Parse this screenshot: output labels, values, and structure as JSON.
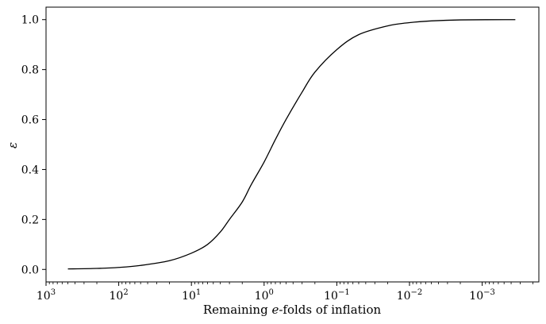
{
  "chart_data": {
    "type": "line",
    "title": "",
    "xlabel": "Remaining e-folds of inflation",
    "ylabel": "ε",
    "x_scale": "log",
    "x_reversed": true,
    "xlim": [
      1000,
      0.0017
    ],
    "ylim": [
      -0.05,
      1.05
    ],
    "grid": false,
    "x_ticks": [
      {
        "value": 1000,
        "base": "10",
        "exp": "3"
      },
      {
        "value": 100,
        "base": "10",
        "exp": "2"
      },
      {
        "value": 10,
        "base": "10",
        "exp": "1"
      },
      {
        "value": 1,
        "base": "10",
        "exp": "0"
      },
      {
        "value": 0.1,
        "base": "10",
        "exp": "−1"
      },
      {
        "value": 0.01,
        "base": "10",
        "exp": "−2"
      },
      {
        "value": 0.001,
        "base": "10",
        "exp": "−3"
      }
    ],
    "y_ticks": [
      {
        "value": 0.0,
        "label": "0.0"
      },
      {
        "value": 0.2,
        "label": "0.2"
      },
      {
        "value": 0.4,
        "label": "0.4"
      },
      {
        "value": 0.6,
        "label": "0.6"
      },
      {
        "value": 0.8,
        "label": "0.8"
      },
      {
        "value": 1.0,
        "label": "1.0"
      }
    ],
    "series": [
      {
        "color": "#000000",
        "points": [
          {
            "x": 500,
            "y": 0.002
          },
          {
            "x": 200,
            "y": 0.004
          },
          {
            "x": 100,
            "y": 0.008
          },
          {
            "x": 50,
            "y": 0.016
          },
          {
            "x": 20,
            "y": 0.035
          },
          {
            "x": 10,
            "y": 0.065
          },
          {
            "x": 6,
            "y": 0.1
          },
          {
            "x": 4,
            "y": 0.15
          },
          {
            "x": 3,
            "y": 0.2
          },
          {
            "x": 2,
            "y": 0.27
          },
          {
            "x": 1.5,
            "y": 0.34
          },
          {
            "x": 1.0,
            "y": 0.43
          },
          {
            "x": 0.7,
            "y": 0.52
          },
          {
            "x": 0.5,
            "y": 0.6
          },
          {
            "x": 0.3,
            "y": 0.71
          },
          {
            "x": 0.2,
            "y": 0.79
          },
          {
            "x": 0.1,
            "y": 0.88
          },
          {
            "x": 0.05,
            "y": 0.94
          },
          {
            "x": 0.02,
            "y": 0.975
          },
          {
            "x": 0.01,
            "y": 0.988
          },
          {
            "x": 0.005,
            "y": 0.995
          },
          {
            "x": 0.002,
            "y": 0.999
          },
          {
            "x": 0.00035,
            "y": 1.0
          }
        ]
      }
    ]
  }
}
